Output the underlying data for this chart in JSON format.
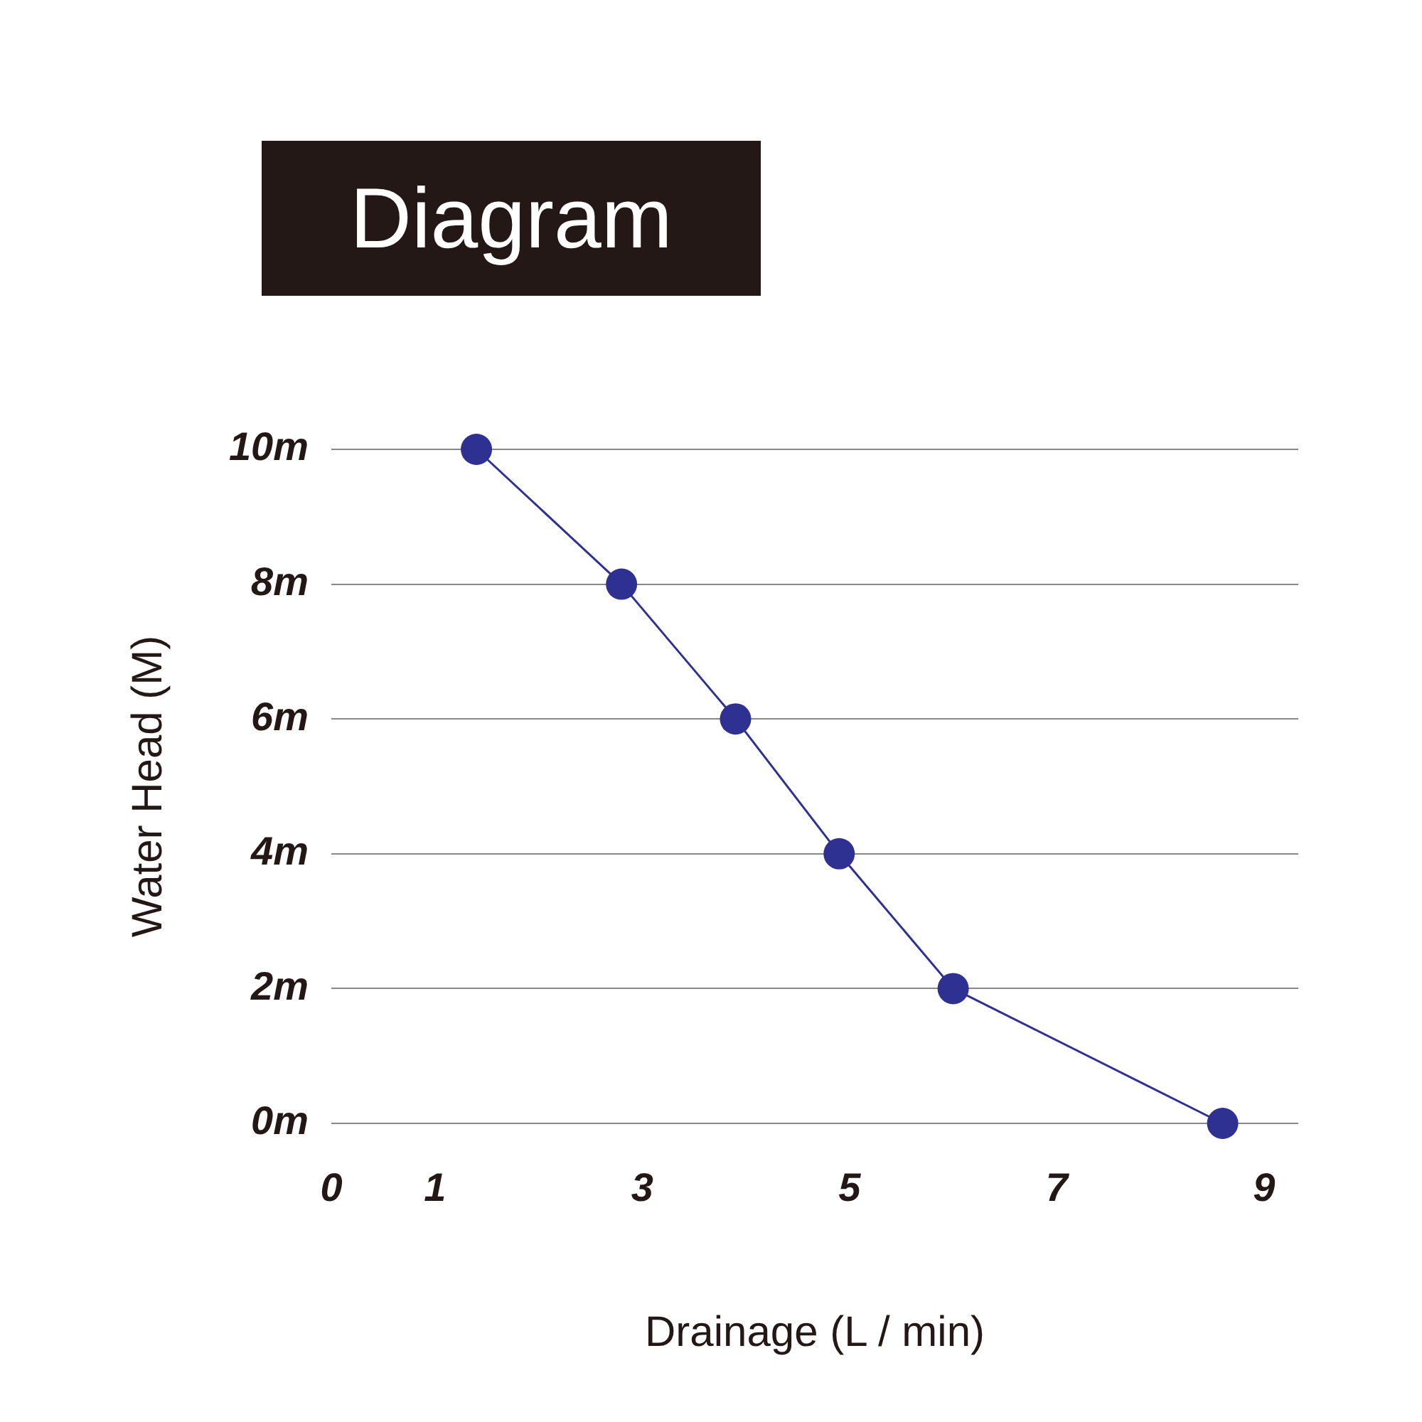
{
  "chart_data": {
    "type": "line",
    "title": "Diagram",
    "xlabel": "Drainage (L / min)",
    "ylabel": "Water Head (M)",
    "x": [
      1.4,
      2.8,
      3.9,
      4.9,
      6,
      8.6
    ],
    "series": [
      {
        "color": "#2e3192",
        "values": [
          10,
          8,
          6,
          4,
          2,
          0
        ]
      }
    ],
    "xlim": [
      0,
      9.33
    ],
    "xticks": [
      0,
      1,
      3,
      5,
      7,
      9
    ],
    "ylim": [
      0,
      10
    ],
    "yticks": [
      {
        "value": 0,
        "label": "0m"
      },
      {
        "value": 2,
        "label": "2m"
      },
      {
        "value": 4,
        "label": "4m"
      },
      {
        "value": 6,
        "label": "6m"
      },
      {
        "value": 8,
        "label": "8m"
      },
      {
        "value": 10,
        "label": "10m"
      }
    ],
    "grid": "y",
    "legend": false,
    "marker": "circle",
    "line_style": "solid"
  }
}
